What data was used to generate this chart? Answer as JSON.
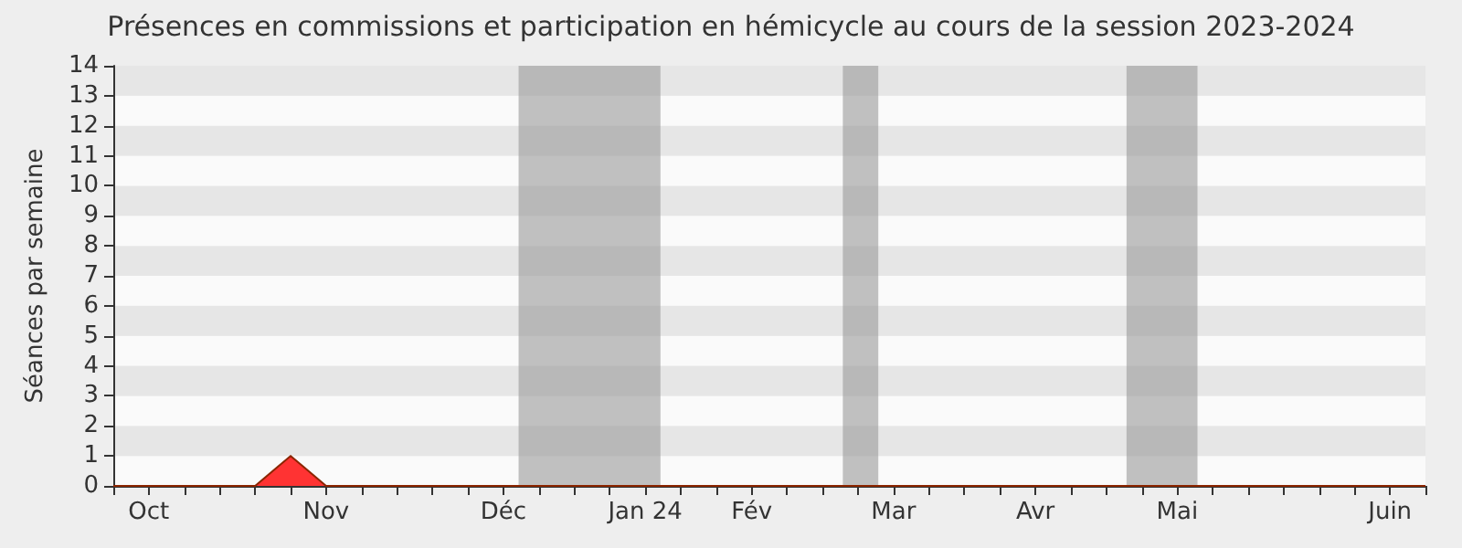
{
  "chart_data": {
    "type": "area",
    "title": "Présences en commissions et participation en hémicycle au cours de la session 2023-2024",
    "ylabel": "Séances par semaine",
    "x": [
      "2023-10-04",
      "2023-10-11",
      "2023-10-18",
      "2023-10-25",
      "2023-11-01",
      "2023-11-08",
      "2023-11-15",
      "2023-11-22",
      "2023-11-29",
      "2023-12-06",
      "2023-12-13",
      "2023-12-20",
      "2023-12-27",
      "2024-01-03",
      "2024-01-10",
      "2024-01-17",
      "2024-01-24",
      "2024-01-31",
      "2024-02-07",
      "2024-02-14",
      "2024-02-21",
      "2024-02-28",
      "2024-03-06",
      "2024-03-13",
      "2024-03-20",
      "2024-03-27",
      "2024-04-03",
      "2024-04-10",
      "2024-04-17",
      "2024-04-24",
      "2024-05-01",
      "2024-05-08",
      "2024-05-15",
      "2024-05-22",
      "2024-05-29",
      "2024-06-05",
      "2024-06-12",
      "2024-06-19"
    ],
    "series": [
      {
        "color": "#ff3333",
        "values": [
          0,
          0,
          0,
          0,
          0,
          1,
          0,
          0,
          0,
          0,
          0,
          0,
          0,
          0,
          0,
          0,
          0,
          0,
          0,
          0,
          0,
          0,
          0,
          0,
          0,
          0,
          0,
          0,
          0,
          0,
          0,
          0,
          0,
          0,
          0,
          0,
          0,
          0
        ]
      }
    ],
    "xlim": [
      "2023-10-04",
      "2024-06-19"
    ],
    "xticks": [
      {
        "value": "2023-10-04",
        "label": null
      },
      {
        "value": "2023-10-11",
        "label": "Oct"
      },
      {
        "value": "2023-10-18",
        "label": null
      },
      {
        "value": "2023-10-25",
        "label": null
      },
      {
        "value": "2023-11-01",
        "label": null
      },
      {
        "value": "2023-11-08",
        "label": null
      },
      {
        "value": "2023-11-15",
        "label": "Nov"
      },
      {
        "value": "2023-11-22",
        "label": null
      },
      {
        "value": "2023-11-29",
        "label": null
      },
      {
        "value": "2023-12-06",
        "label": null
      },
      {
        "value": "2023-12-13",
        "label": null
      },
      {
        "value": "2023-12-20",
        "label": "Déc"
      },
      {
        "value": "2023-12-27",
        "label": null
      },
      {
        "value": "2024-01-03",
        "label": null
      },
      {
        "value": "2024-01-10",
        "label": null
      },
      {
        "value": "2024-01-17",
        "label": "Jan 24"
      },
      {
        "value": "2024-01-24",
        "label": null
      },
      {
        "value": "2024-01-31",
        "label": null
      },
      {
        "value": "2024-02-07",
        "label": "Fév"
      },
      {
        "value": "2024-02-14",
        "label": null
      },
      {
        "value": "2024-02-21",
        "label": null
      },
      {
        "value": "2024-02-28",
        "label": null
      },
      {
        "value": "2024-03-06",
        "label": "Mar"
      },
      {
        "value": "2024-03-13",
        "label": null
      },
      {
        "value": "2024-03-20",
        "label": null
      },
      {
        "value": "2024-03-27",
        "label": null
      },
      {
        "value": "2024-04-03",
        "label": "Avr"
      },
      {
        "value": "2024-04-10",
        "label": null
      },
      {
        "value": "2024-04-17",
        "label": null
      },
      {
        "value": "2024-04-24",
        "label": null
      },
      {
        "value": "2024-05-01",
        "label": "Mai"
      },
      {
        "value": "2024-05-08",
        "label": null
      },
      {
        "value": "2024-05-15",
        "label": null
      },
      {
        "value": "2024-05-22",
        "label": null
      },
      {
        "value": "2024-05-29",
        "label": null
      },
      {
        "value": "2024-06-05",
        "label": null
      },
      {
        "value": "2024-06-12",
        "label": "Juin"
      },
      {
        "value": "2024-06-19",
        "label": null
      }
    ],
    "ylim": [
      0,
      14
    ],
    "yticks": [
      0,
      1,
      2,
      3,
      4,
      5,
      6,
      7,
      8,
      9,
      10,
      11,
      12,
      13,
      14
    ],
    "bands": [
      {
        "axis": "x",
        "from": "2023-12-23",
        "to": "2024-01-20",
        "color": "#999999"
      },
      {
        "axis": "x",
        "from": "2024-02-25",
        "to": "2024-03-03",
        "color": "#999999"
      },
      {
        "axis": "x",
        "from": "2024-04-21",
        "to": "2024-05-05",
        "color": "#999999"
      }
    ]
  }
}
